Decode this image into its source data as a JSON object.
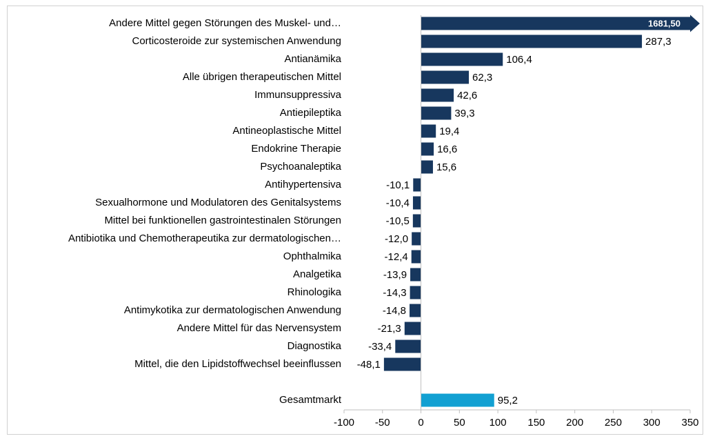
{
  "chart_data": {
    "type": "hbar",
    "categories": [
      "Andere Mittel gegen Störungen des Muskel- und…",
      "Corticosteroide zur systemischen Anwendung",
      "Antianämika",
      "Alle übrigen therapeutischen Mittel",
      "Immunsuppressiva",
      "Antiepileptika",
      "Antineoplastische Mittel",
      "Endokrine Therapie",
      "Psychoanaleptika",
      "Antihypertensiva",
      "Sexualhormone und Modulatoren des Genitalsystems",
      "Mittel bei funktionellen gastrointestinalen Störungen",
      "Antibiotika und Chemotherapeutika zur dermatologischen…",
      "Ophthalmika",
      "Analgetika",
      "Rhinologika",
      "Antimykotika zur dermatologischen Anwendung",
      "Andere Mittel für das Nervensystem",
      "Diagnostika",
      "Mittel, die den Lipidstoffwechsel beeinflussen",
      null,
      "Gesamtmarkt"
    ],
    "values": [
      1681.5,
      287.3,
      106.4,
      62.3,
      42.6,
      39.3,
      19.4,
      16.6,
      15.6,
      -10.1,
      -10.4,
      -10.5,
      -12.0,
      -12.4,
      -13.9,
      -14.3,
      -14.8,
      -21.3,
      -33.4,
      -48.1,
      null,
      95.2
    ],
    "value_labels": [
      "1681,50",
      "287,3",
      "106,4",
      "62,3",
      "42,6",
      "39,3",
      "19,4",
      "16,6",
      "15,6",
      "-10,1",
      "-10,4",
      "-10,5",
      "-12,0",
      "-12,4",
      "-13,9",
      "-14,3",
      "-14,8",
      "-21,3",
      "-33,4",
      "-48,1",
      null,
      "95,2"
    ],
    "colors": [
      "#17375e",
      "#17375e",
      "#17375e",
      "#17375e",
      "#17375e",
      "#17375e",
      "#17375e",
      "#17375e",
      "#17375e",
      "#17375e",
      "#17375e",
      "#17375e",
      "#17375e",
      "#17375e",
      "#17375e",
      "#17375e",
      "#17375e",
      "#17375e",
      "#17375e",
      "#17375e",
      null,
      "#12a0d2"
    ],
    "xlim": [
      -100,
      350
    ],
    "xticks": [
      -100,
      -50,
      0,
      50,
      100,
      150,
      200,
      250,
      300,
      350
    ]
  }
}
